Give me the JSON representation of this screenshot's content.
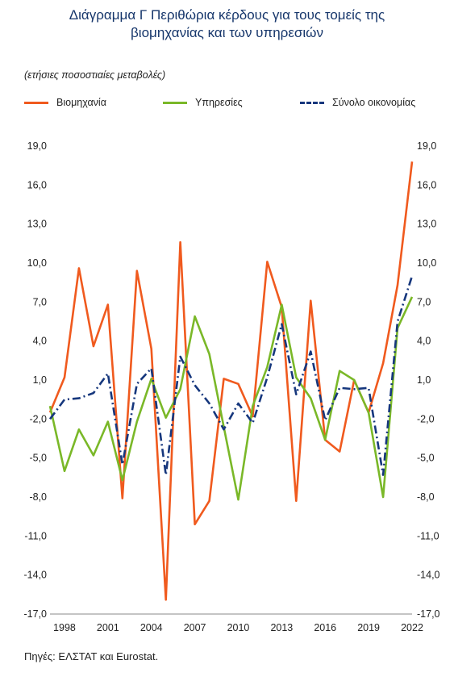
{
  "title_line1": "Διάγραμμα Γ Περιθώρια κέρδους για τους τομείς της",
  "title_line2": "βιομηχανίας και των υπηρεσιών",
  "subtitle": "(ετήσιες ποσοστιαίες μεταβολές)",
  "source": "Πηγές: ΕΛΣΤΑΤ και Eurostat.",
  "chart_data": {
    "type": "line",
    "ylim": [
      -17,
      19
    ],
    "yticks": [
      "19,0",
      "16,0",
      "13,0",
      "10,0",
      "7,0",
      "4,0",
      "1,0",
      "-2,0",
      "-5,0",
      "-8,0",
      "-11,0",
      "-14,0",
      "-17,0"
    ],
    "ytick_values": [
      19,
      16,
      13,
      10,
      7,
      4,
      1,
      -2,
      -5,
      -8,
      -11,
      -14,
      -17
    ],
    "x": [
      1997,
      1998,
      1999,
      2000,
      2001,
      2002,
      2003,
      2004,
      2005,
      2006,
      2007,
      2008,
      2009,
      2010,
      2011,
      2012,
      2013,
      2014,
      2015,
      2016,
      2017,
      2018,
      2019,
      2020,
      2021,
      2022
    ],
    "xticks": [
      "1998",
      "2001",
      "2004",
      "2007",
      "2010",
      "2013",
      "2016",
      "2019",
      "2022"
    ],
    "xtick_values": [
      1998,
      2001,
      2004,
      2007,
      2010,
      2013,
      2016,
      2019,
      2022
    ],
    "series": [
      {
        "name": "Βιομηχανία",
        "color": "#f05a1e",
        "style": "solid",
        "values": [
          -1.5,
          1.2,
          9.6,
          3.6,
          6.8,
          -8.1,
          9.4,
          3.4,
          -15.9,
          11.6,
          -10.1,
          -8.3,
          1.1,
          0.7,
          -1.8,
          10.1,
          6.6,
          -8.3,
          7.1,
          -3.6,
          -4.5,
          1.0,
          -1.5,
          2.3,
          8.3,
          17.8
        ]
      },
      {
        "name": "Υπηρεσίες",
        "color": "#7ab828",
        "style": "solid",
        "values": [
          -1.0,
          -6.0,
          -2.8,
          -4.8,
          -2.2,
          -6.7,
          -2.2,
          1.1,
          -1.9,
          0.3,
          5.9,
          3.0,
          -2.6,
          -8.2,
          -1.0,
          2.0,
          6.8,
          1.2,
          -0.4,
          -3.6,
          1.7,
          1.0,
          -1.5,
          -8.0,
          5.0,
          7.4
        ]
      },
      {
        "name": "Σύνολο οικονομίας",
        "color": "#16377d",
        "style": "dashdot",
        "values": [
          -2.0,
          -0.5,
          -0.4,
          0.0,
          1.5,
          -5.5,
          0.7,
          1.9,
          -6.3,
          2.8,
          0.6,
          -0.8,
          -2.8,
          -0.8,
          -2.3,
          1.2,
          5.3,
          -0.1,
          3.2,
          -2.1,
          0.4,
          0.3,
          0.4,
          -6.3,
          5.5,
          9.0
        ]
      }
    ]
  }
}
